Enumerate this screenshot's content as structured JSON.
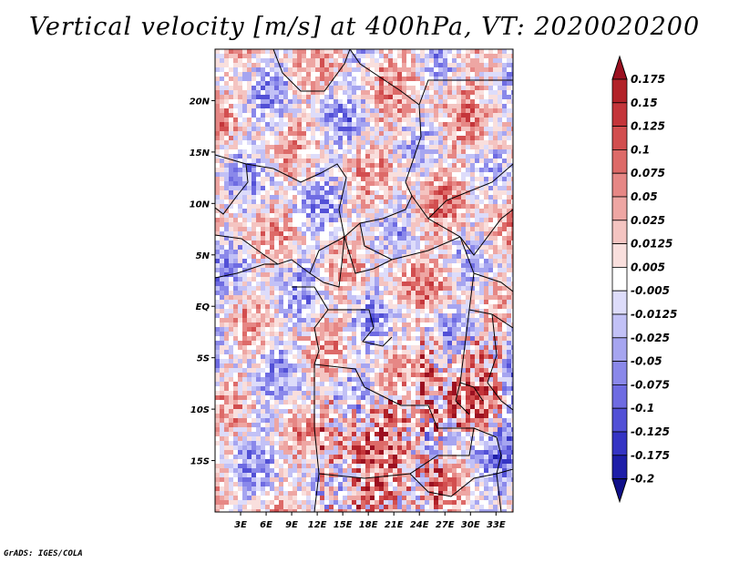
{
  "title": "Vertical velocity [m/s] at 400hPa, VT: 2020020200",
  "footer": "GrADS: IGES/COLA",
  "map": {
    "lat_labels": [
      "20N",
      "15N",
      "10N",
      "5N",
      "EQ",
      "5S",
      "10S",
      "15S"
    ],
    "lon_labels": [
      "3E",
      "6E",
      "9E",
      "12E",
      "15E",
      "18E",
      "21E",
      "24E",
      "27E",
      "30E",
      "33E"
    ],
    "lat_range": [
      -20,
      25
    ],
    "lon_range": [
      0,
      35
    ]
  },
  "colorbar": {
    "labels": [
      "0.175",
      "0.15",
      "0.125",
      "0.1",
      "0.075",
      "0.05",
      "0.025",
      "0.0125",
      "0.005",
      "-0.005",
      "-0.0125",
      "-0.025",
      "-0.05",
      "-0.075",
      "-0.1",
      "-0.125",
      "-0.175",
      "-0.2"
    ],
    "colors": [
      "#9b1020",
      "#b22228",
      "#c4353a",
      "#d24e4f",
      "#dd6a68",
      "#e68785",
      "#eea6a3",
      "#f4c4c1",
      "#f9dfdd",
      "#ffffff",
      "#dddcfa",
      "#c2c1f6",
      "#a6a5f0",
      "#8a88ea",
      "#6e6be2",
      "#5250d6",
      "#3534c4",
      "#1e1ea8",
      "#10108a"
    ]
  }
}
